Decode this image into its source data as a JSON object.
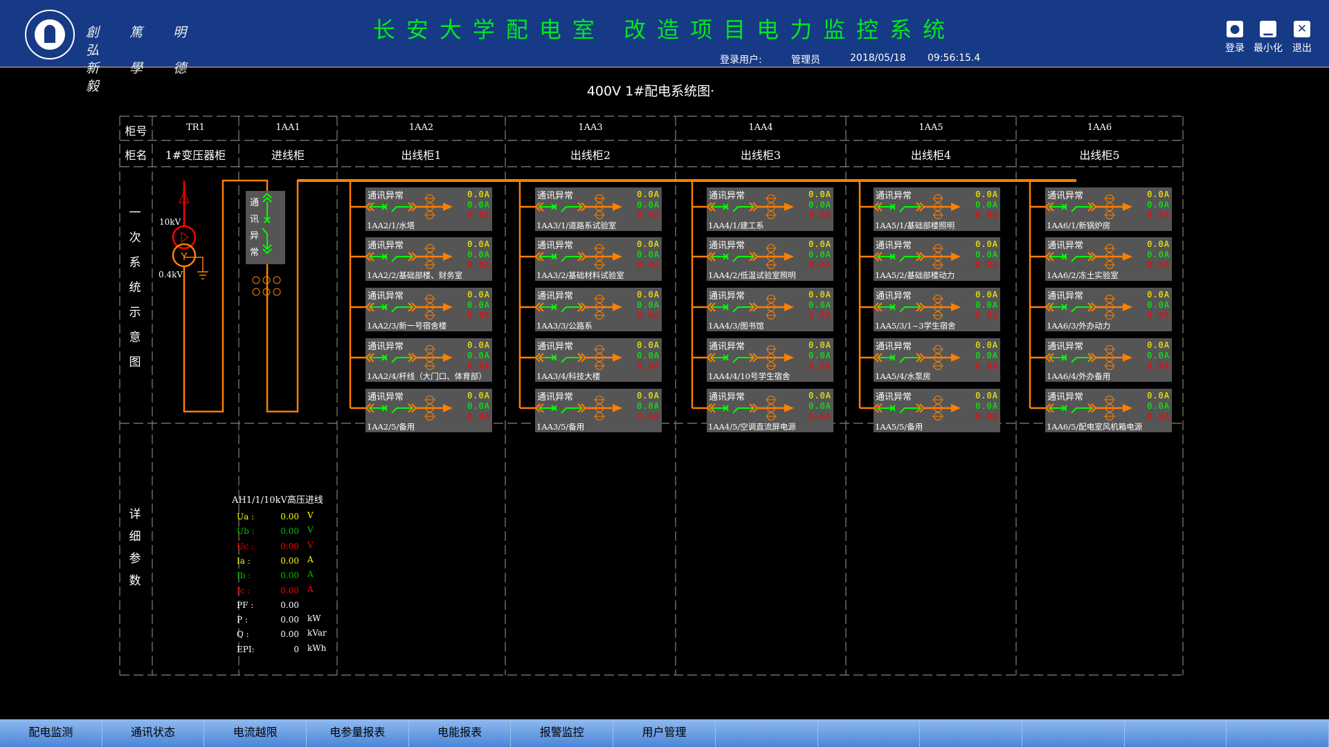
{
  "header": {
    "title": "长安大学配电室 改造项目电力监控系统",
    "motto_line1": "創 篤 明 弘",
    "motto_line2": "新 學 德 毅",
    "user_label": "登录用户:",
    "user": "管理员",
    "date": "2018/05/18",
    "time": "09:56:15.4",
    "buttons": [
      {
        "label": "登录",
        "icon": "user-icon"
      },
      {
        "label": "最小化",
        "icon": "minimize-icon"
      },
      {
        "label": "退出",
        "icon": "close-icon"
      }
    ]
  },
  "diagram": {
    "title": "400V 1#配电系统图·",
    "row_id_label": "柜号",
    "row_name_label": "柜名",
    "section1": "一次系统示意图",
    "section2": "详细参数",
    "tr_high": "10kV",
    "tr_low": "0.4kV",
    "aa1_status": "通讯异常",
    "cabinets": [
      {
        "id": "TR1",
        "name": "1#变压器柜"
      },
      {
        "id": "1AA1",
        "name": "进线柜"
      },
      {
        "id": "1AA2",
        "name": "出线柜1"
      },
      {
        "id": "1AA3",
        "name": "出线柜2"
      },
      {
        "id": "1AA4",
        "name": "出线柜3"
      },
      {
        "id": "1AA5",
        "name": "出线柜4"
      },
      {
        "id": "1AA6",
        "name": "出线柜5"
      }
    ],
    "feeder_status": "通讯异常",
    "feeder_values": [
      "0.0",
      "0.0",
      "0.0"
    ],
    "feeder_unit": "A",
    "feeders": [
      [
        "1AA2/1/水塔",
        "1AA2/2/基础部楼、财务室",
        "1AA2/3/新一号宿舍楼",
        "1AA2/4/杆线（大门口、体育部）",
        "1AA2/5/备用"
      ],
      [
        "1AA3/1/道路系试验室",
        "1AA3/2/基础材料试验室",
        "1AA3/3/公路系",
        "1AA3/4/科技大楼",
        "1AA3/5/备用"
      ],
      [
        "1AA4/1/建工系",
        "1AA4/2/低温试验室照明",
        "1AA4/3/图书馆",
        "1AA4/4/10号学生宿舍",
        "1AA4/5/空调直流屏电源"
      ],
      [
        "1AA5/1/基础部楼照明",
        "1AA5/2/基础部楼动力",
        "1AA5/3/1~3学生宿舍",
        "1AA5/4/水泵房",
        "1AA5/5/备用"
      ],
      [
        "1AA6/1/新锅炉房",
        "1AA6/2/冻土实验室",
        "1AA6/3/外办动力",
        "1AA6/4/外办备用",
        "1AA6/5/配电室风机箱电源"
      ]
    ]
  },
  "params": {
    "title": "AH1/1/10kV高压进线",
    "rows": [
      {
        "label": "Ua :",
        "value": "0.00",
        "unit": "V",
        "color": "#ffff00"
      },
      {
        "label": "Ub :",
        "value": "0.00",
        "unit": "V",
        "color": "#00c000"
      },
      {
        "label": "Uc :",
        "value": "0.00",
        "unit": "V",
        "color": "#ff0000"
      },
      {
        "label": "Ia :",
        "value": "0.00",
        "unit": "A",
        "color": "#ffff00"
      },
      {
        "label": "Ib :",
        "value": "0.00",
        "unit": "A",
        "color": "#00c000"
      },
      {
        "label": "Ic :",
        "value": "0.00",
        "unit": "A",
        "color": "#ff0000"
      },
      {
        "label": "PF :",
        "value": "0.00",
        "unit": "",
        "color": "#ffffff"
      },
      {
        "label": "P  :",
        "value": "0.00",
        "unit": "kW",
        "color": "#ffffff"
      },
      {
        "label": "Q  :",
        "value": "0.00",
        "unit": "kVar",
        "color": "#ffffff"
      },
      {
        "label": "EPI:",
        "value": "0",
        "unit": "kWh",
        "color": "#ffffff"
      }
    ]
  },
  "footer": {
    "tabs": [
      "配电监测",
      "通讯状态",
      "电流越限",
      "电参量报表",
      "电能报表",
      "报警监控",
      "用户管理",
      "",
      "",
      "",
      "",
      "",
      ""
    ]
  },
  "colors": {
    "header_bg": "#163a85",
    "title": "#00e81e",
    "bus": "#ff8000",
    "phase_a": "#ffff00",
    "phase_b": "#00ff00",
    "phase_c": "#ff0000",
    "feeder_bg": "#555555"
  }
}
